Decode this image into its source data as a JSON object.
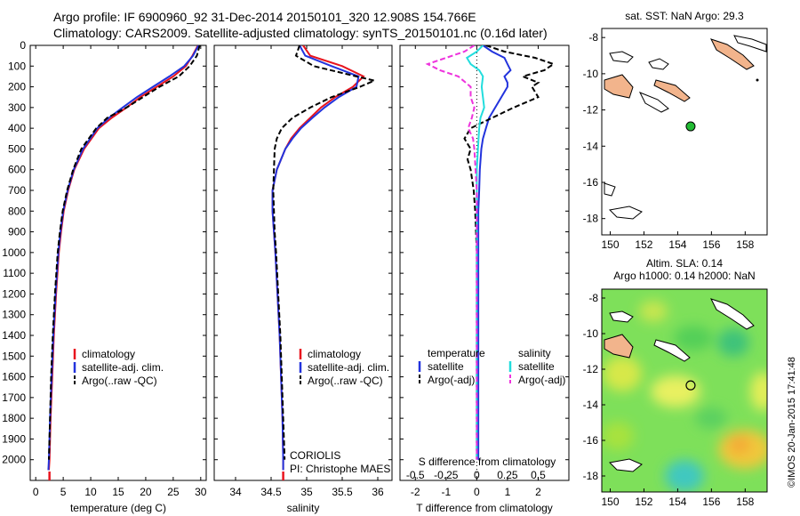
{
  "header": {
    "line1": "Argo profile: IF 6900960_92 31-Dec-2014 20150101_320 12.908S 154.766E",
    "line2": "Climatology: CARS2009. Satellite-adjusted climatology: synTS_20150101.nc (0.16d later)"
  },
  "colors": {
    "clim": "#e8141e",
    "sat": "#2233dd",
    "argo": "#000000",
    "cyan": "#22dddd",
    "magenta": "#ee33dd",
    "land": "#f2b48c"
  },
  "panel_text": {
    "credit1": "CORIOLIS",
    "credit2": "PI: Christophe MAES",
    "diff_top_label": "S difference from climatology",
    "diff_bottom_label": "T difference from climatology",
    "legend_temperature": "temperature",
    "legend_salinity": "salinity",
    "legend_satellite": "satellite",
    "legend_argo": "Argo(-adj)",
    "map1_title": "sat. SST: NaN Argo: 29.3",
    "map2_title1": "Altim. SLA: 0.14",
    "map2_title2": "Argo h1000: 0.14 h2000: NaN",
    "watermark": "©IMOS 20-Jan-2015 17:41:48"
  },
  "chart_data": [
    {
      "type": "line",
      "xlabel": "temperature (deg C)",
      "ylabel": "",
      "xlim": [
        -1,
        31
      ],
      "ylim": [
        2100,
        0
      ],
      "xticks": [
        0,
        5,
        10,
        15,
        20,
        25,
        30
      ],
      "yticks": [
        0,
        100,
        200,
        300,
        400,
        500,
        600,
        700,
        800,
        900,
        1000,
        1100,
        1200,
        1300,
        1400,
        1500,
        1600,
        1700,
        1800,
        1900,
        2000
      ],
      "legend": [
        "climatology",
        "satellite-adj. clim.",
        "Argo(..raw -QC)"
      ],
      "series": [
        {
          "name": "climatology",
          "depth": [
            0,
            50,
            100,
            150,
            200,
            250,
            300,
            350,
            400,
            500,
            600,
            700,
            800,
            900,
            1000,
            1200,
            1400,
            1600,
            1800,
            2000,
            2050
          ],
          "values": [
            29.5,
            28.5,
            27.3,
            25.0,
            22.0,
            19.0,
            16.5,
            13.8,
            11.5,
            8.8,
            7.0,
            5.9,
            5.1,
            4.6,
            4.2,
            3.7,
            3.3,
            3.0,
            2.7,
            2.5,
            2.4
          ]
        },
        {
          "name": "satellite-adj. clim.",
          "depth": [
            0,
            50,
            100,
            150,
            200,
            250,
            300,
            350,
            400,
            500,
            600,
            700,
            800,
            900,
            1000,
            1200,
            1400,
            1600,
            1800,
            2000,
            2050
          ],
          "values": [
            29.6,
            28.6,
            27.0,
            24.3,
            21.3,
            18.4,
            15.8,
            13.3,
            11.2,
            8.6,
            6.9,
            5.8,
            5.0,
            4.5,
            4.1,
            3.6,
            3.2,
            2.9,
            2.6,
            2.4,
            2.3
          ]
        },
        {
          "name": "Argo(..raw -QC)",
          "depth": [
            0,
            50,
            100,
            150,
            200,
            250,
            300,
            350,
            400,
            500,
            600,
            700,
            800,
            900,
            1000,
            1200,
            1400,
            1600,
            1800,
            2000
          ],
          "values": [
            29.8,
            29.3,
            28.0,
            26.0,
            22.5,
            19.5,
            16.5,
            13.0,
            11.0,
            8.3,
            6.8,
            5.7,
            4.9,
            4.4,
            4.0,
            3.5,
            3.1,
            2.8,
            2.6,
            2.4
          ]
        }
      ]
    },
    {
      "type": "line",
      "xlabel": "salinity",
      "ylabel": "",
      "xlim": [
        33.7,
        36.2
      ],
      "ylim": [
        2100,
        0
      ],
      "xticks": [
        34,
        34.5,
        35,
        35.5,
        36
      ],
      "legend": [
        "climatology",
        "satellite-adj. clim.",
        "Argo(..raw -QC)"
      ],
      "series": [
        {
          "name": "climatology",
          "depth": [
            0,
            50,
            100,
            150,
            200,
            250,
            300,
            350,
            400,
            450,
            500,
            600,
            700,
            800,
            900,
            1000,
            1200,
            1400,
            1600,
            1800,
            2000,
            2050
          ],
          "values": [
            34.95,
            35.05,
            35.5,
            35.8,
            35.65,
            35.4,
            35.2,
            35.05,
            34.9,
            34.78,
            34.7,
            34.58,
            34.52,
            34.52,
            34.54,
            34.56,
            34.59,
            34.62,
            34.64,
            34.66,
            34.67,
            34.67
          ]
        },
        {
          "name": "satellite-adj. clim.",
          "depth": [
            0,
            50,
            100,
            150,
            200,
            250,
            300,
            350,
            400,
            450,
            500,
            600,
            700,
            800,
            900,
            1000,
            1200,
            1400,
            1600,
            1800,
            2000,
            2050
          ],
          "values": [
            34.9,
            34.98,
            35.35,
            35.73,
            35.7,
            35.45,
            35.25,
            35.08,
            34.92,
            34.8,
            34.7,
            34.58,
            34.52,
            34.52,
            34.54,
            34.56,
            34.59,
            34.62,
            34.64,
            34.66,
            34.67,
            34.67
          ]
        },
        {
          "name": "Argo(..raw -QC)",
          "depth": [
            0,
            50,
            100,
            150,
            170,
            200,
            250,
            300,
            350,
            400,
            450,
            500,
            600,
            700,
            800,
            900,
            1000,
            1200,
            1400,
            1600,
            1800,
            2000
          ],
          "values": [
            34.9,
            34.85,
            35.1,
            35.7,
            35.95,
            35.75,
            35.35,
            35.05,
            34.8,
            34.65,
            34.58,
            34.55,
            34.54,
            34.53,
            34.54,
            34.55,
            34.57,
            34.6,
            34.63,
            34.65,
            34.67,
            34.69
          ]
        }
      ]
    },
    {
      "type": "line",
      "xlabel": "T difference from climatology",
      "xlabel_top": "S difference from climatology",
      "xlim": [
        -2.5,
        3.0
      ],
      "ylim": [
        2100,
        0
      ],
      "xticks_bottom": [
        -2,
        -1,
        0,
        1,
        2
      ],
      "xticks_top_labels": [
        "-0.5",
        "-0.25",
        "0",
        "0.25",
        "0.5"
      ],
      "legend": [
        "temperature satellite",
        "temperature Argo(-adj)",
        "salinity satellite",
        "salinity Argo(-adj)"
      ],
      "series": [
        {
          "name": "temperature satellite",
          "depth": [
            0,
            30,
            60,
            90,
            120,
            150,
            180,
            200,
            250,
            300,
            350,
            400,
            450,
            500,
            600,
            700,
            800,
            1000,
            1500,
            2000
          ],
          "values": [
            0.2,
            0.5,
            0.9,
            1.0,
            1.1,
            0.9,
            1.0,
            1.0,
            0.8,
            0.6,
            0.4,
            0.3,
            0.2,
            0.15,
            0.1,
            0.08,
            0.05,
            0.05,
            0.05,
            0.05
          ]
        },
        {
          "name": "temperature Argo(-adj)",
          "depth": [
            0,
            30,
            60,
            90,
            120,
            150,
            180,
            200,
            250,
            300,
            350,
            400,
            450,
            500,
            550,
            600,
            700,
            800,
            1000,
            1500,
            2000
          ],
          "values": [
            0.3,
            0.9,
            1.9,
            2.5,
            2.2,
            1.5,
            2.0,
            1.8,
            2.0,
            1.2,
            0.5,
            -0.2,
            -0.4,
            -0.2,
            -0.3,
            -0.2,
            -0.1,
            -0.05,
            0,
            0,
            0
          ]
        },
        {
          "name": "salinity satellite",
          "depth": [
            0,
            30,
            60,
            90,
            120,
            150,
            200,
            250,
            300,
            350,
            400,
            500,
            600,
            700,
            800,
            1000,
            1500,
            2000
          ],
          "values": [
            0.05,
            0.0,
            -0.08,
            -0.05,
            0.02,
            0.05,
            0.04,
            0.05,
            0.06,
            0.03,
            0.02,
            0.01,
            0.0,
            0.0,
            0.0,
            0.0,
            0.0,
            0.0
          ]
        },
        {
          "name": "salinity Argo(-adj)",
          "depth": [
            0,
            30,
            60,
            90,
            120,
            150,
            200,
            250,
            300,
            350,
            400,
            450,
            500,
            600,
            700,
            800,
            1000,
            1500,
            2000
          ],
          "values": [
            -0.02,
            -0.1,
            -0.25,
            -0.4,
            -0.3,
            -0.15,
            -0.05,
            -0.05,
            -0.02,
            -0.04,
            -0.07,
            -0.03,
            -0.02,
            -0.01,
            0,
            0,
            0,
            0,
            0
          ]
        }
      ]
    },
    {
      "type": "scatter",
      "title": "sat. SST: NaN Argo: 29.3",
      "xlim": [
        149.5,
        159.3
      ],
      "ylim": [
        -18.9,
        -7.5
      ],
      "xticks": [
        150,
        152,
        154,
        156,
        158
      ],
      "yticks": [
        -8,
        -10,
        -12,
        -14,
        -16,
        -18
      ],
      "points": [
        {
          "x": 154.766,
          "y": -12.908
        }
      ]
    },
    {
      "type": "heatmap",
      "title": "Altim. SLA: 0.14",
      "subtitle": "Argo h1000: 0.14 h2000: NaN",
      "xlim": [
        149.5,
        159.3
      ],
      "ylim": [
        -18.9,
        -7.5
      ],
      "xticks": [
        150,
        152,
        154,
        156,
        158
      ],
      "yticks": [
        -8,
        -10,
        -12,
        -14,
        -16,
        -18
      ],
      "points": [
        {
          "x": 154.766,
          "y": -12.908
        }
      ]
    }
  ]
}
